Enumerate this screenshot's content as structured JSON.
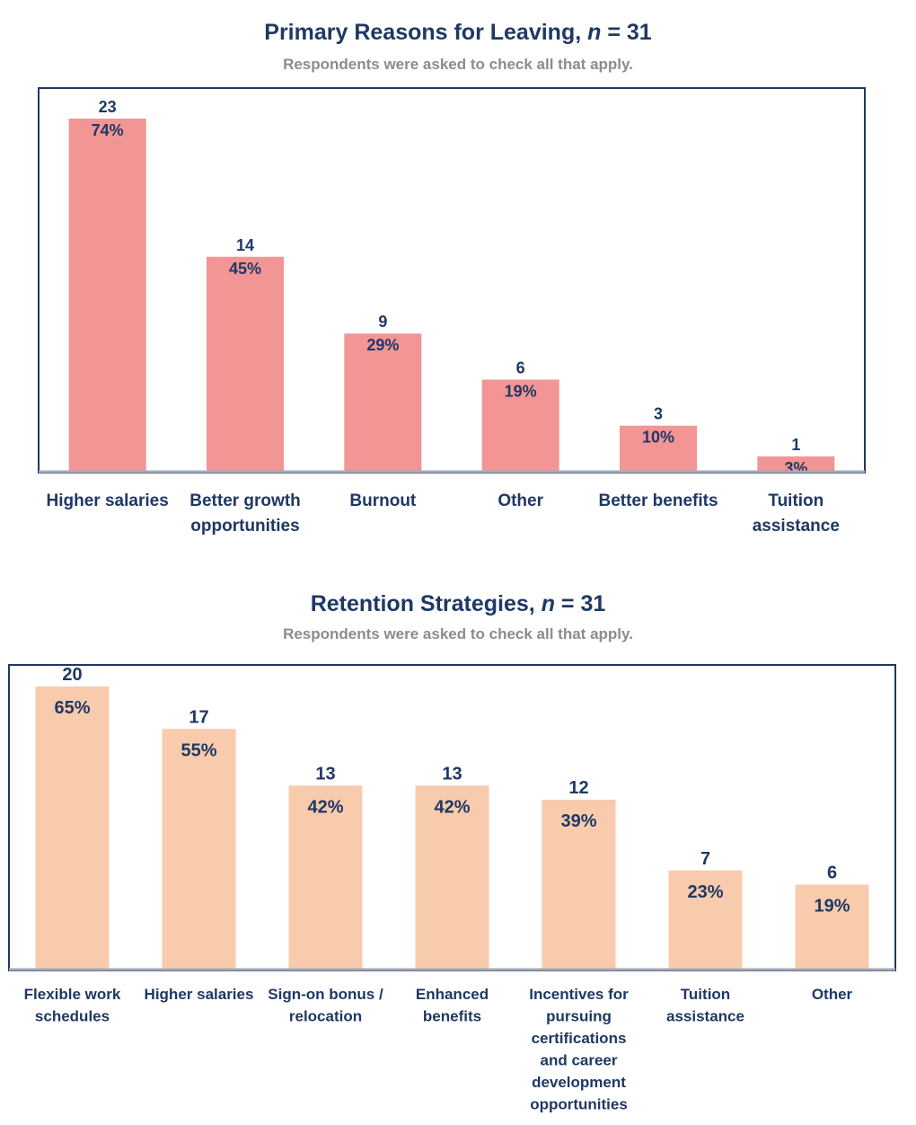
{
  "chart_data": [
    {
      "type": "bar",
      "title_main": "Primary Reasons for Leaving, ",
      "title_n": "n",
      "title_tail": " = 31",
      "subtitle": "Respondents were asked to check all that apply.",
      "categories": [
        [
          "Higher salaries"
        ],
        [
          "Better growth",
          "opportunities"
        ],
        [
          "Burnout"
        ],
        [
          "Other"
        ],
        [
          "Better benefits"
        ],
        [
          "Tuition",
          "assistance"
        ]
      ],
      "values": [
        23,
        14,
        9,
        6,
        3,
        1
      ],
      "percent_labels": [
        "74%",
        "45%",
        "29%",
        "19%",
        "10%",
        "3%"
      ],
      "ylim": [
        0,
        25
      ],
      "bar_color": "#f29595",
      "frame_color": "#1f3864",
      "axis_color": "#a6aab5"
    },
    {
      "type": "bar",
      "title_main": "Retention Strategies, ",
      "title_n": "n",
      "title_tail": " = 31",
      "subtitle": "Respondents were asked to check all that apply.",
      "categories": [
        [
          "Flexible work",
          "schedules"
        ],
        [
          "Higher salaries"
        ],
        [
          "Sign-on bonus /",
          "relocation"
        ],
        [
          "Enhanced",
          "benefits"
        ],
        [
          "Incentives for",
          "pursuing",
          "certifications",
          "and career",
          "development",
          "opportunities"
        ],
        [
          "Tuition",
          "assistance"
        ],
        [
          "Other"
        ]
      ],
      "values": [
        20,
        17,
        13,
        13,
        12,
        7,
        6
      ],
      "percent_labels": [
        "65%",
        "55%",
        "42%",
        "42%",
        "39%",
        "23%",
        "19%"
      ],
      "ylim": [
        0,
        21.5
      ],
      "bar_color": "#f8cbad",
      "frame_color": "#1f3864",
      "axis_color": "#a6aab5"
    }
  ]
}
